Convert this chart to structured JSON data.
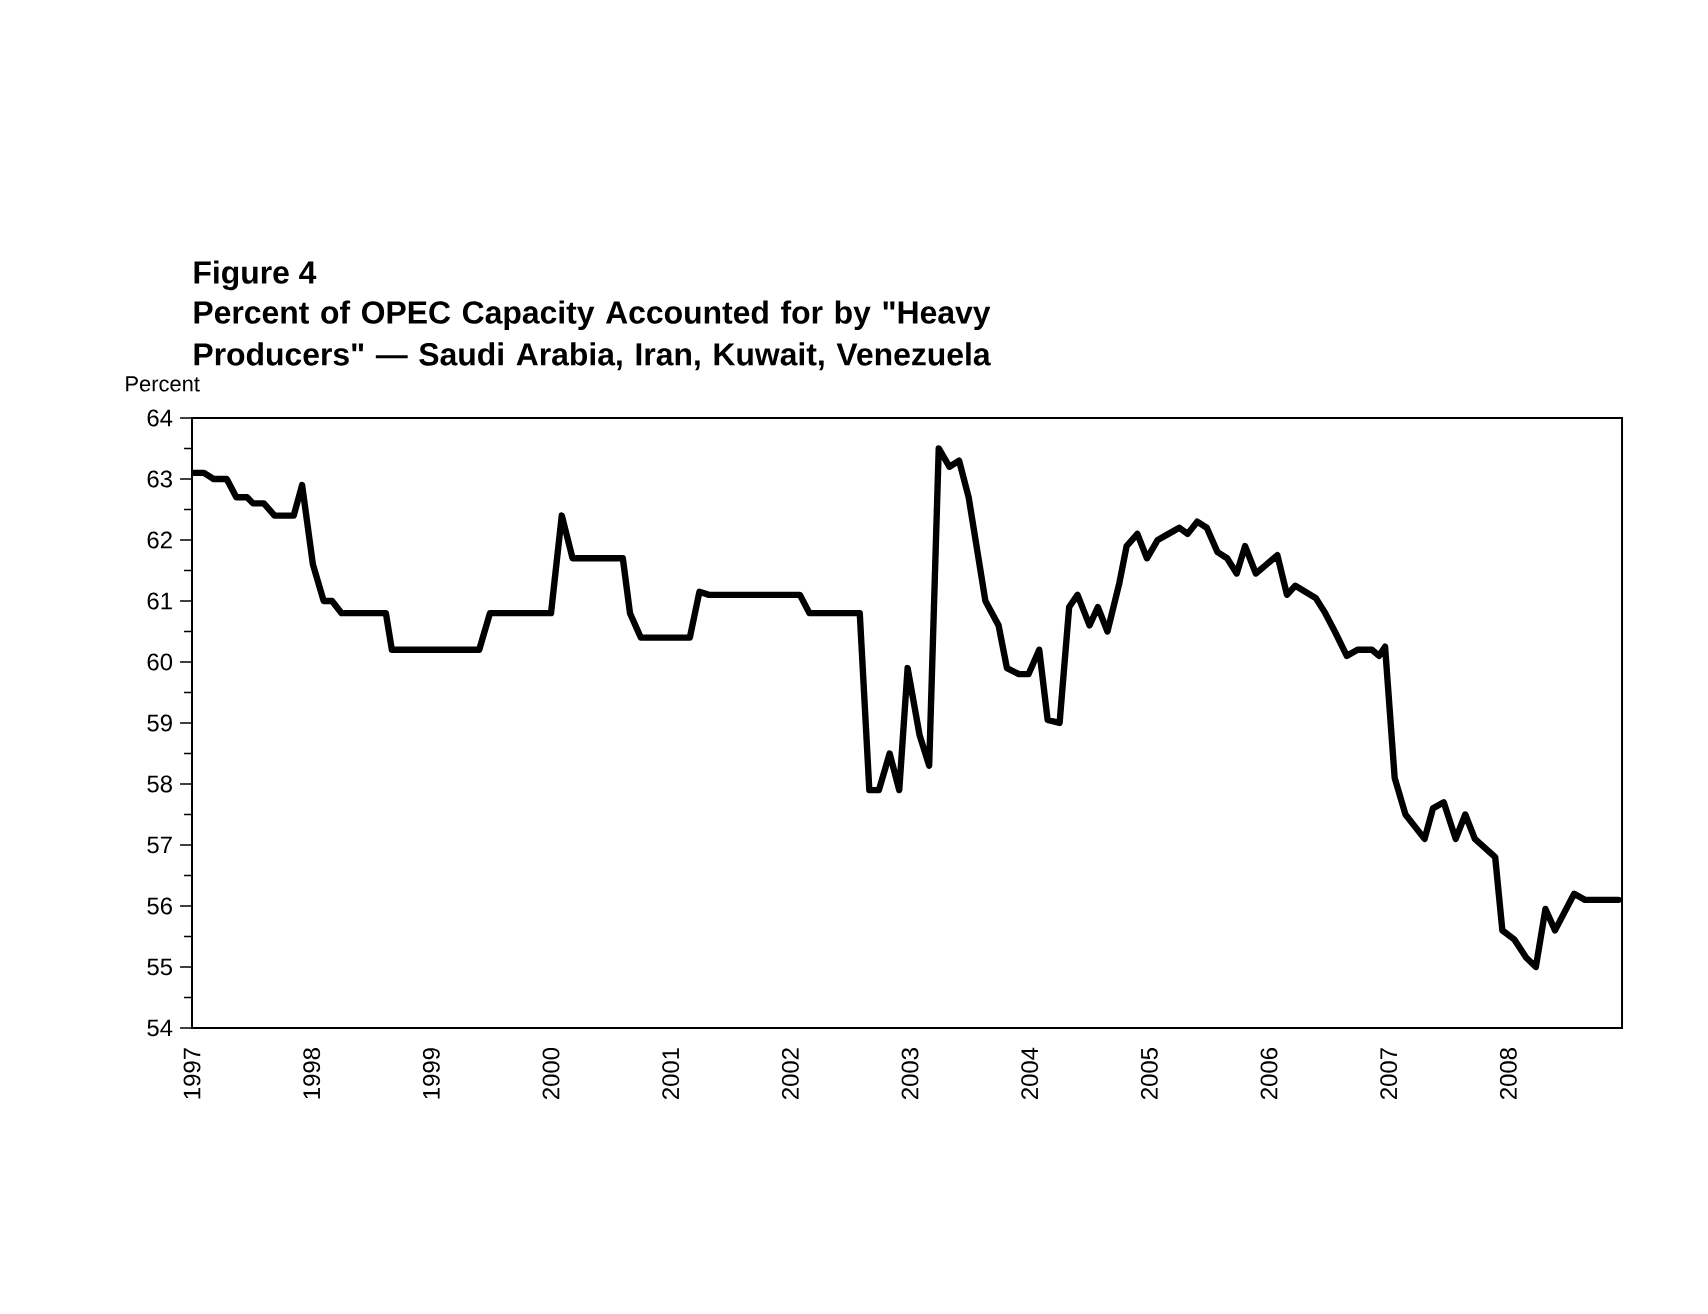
{
  "chart_data": {
    "type": "line",
    "title": "Figure 4",
    "subtitle": "Percent of OPEC Capacity Accounted for by \"Heavy Producers\" — Saudi Arabia, Iran, Kuwait, Venezuela",
    "ylabel": "Percent",
    "x": [
      1997.0,
      1997.1,
      1997.18,
      1997.29,
      1997.37,
      1997.46,
      1997.51,
      1997.6,
      1997.69,
      1997.85,
      1997.92,
      1998.01,
      1998.1,
      1998.17,
      1998.25,
      1998.62,
      1998.67,
      1999.4,
      1999.49,
      2000.0,
      2000.09,
      2000.18,
      2000.6,
      2000.66,
      2000.75,
      2001.16,
      2001.24,
      2001.32,
      2002.08,
      2002.16,
      2002.58,
      2002.66,
      2002.74,
      2002.83,
      2002.91,
      2002.98,
      2003.08,
      2003.16,
      2003.24,
      2003.33,
      2003.41,
      2003.49,
      2003.63,
      2003.74,
      2003.81,
      2003.91,
      2003.99,
      2004.08,
      2004.15,
      2004.25,
      2004.33,
      2004.4,
      2004.5,
      2004.57,
      2004.65,
      2004.75,
      2004.81,
      2004.9,
      2004.98,
      2005.07,
      2005.16,
      2005.25,
      2005.32,
      2005.4,
      2005.48,
      2005.57,
      2005.65,
      2005.73,
      2005.8,
      2005.89,
      2005.98,
      2006.07,
      2006.15,
      2006.22,
      2006.39,
      2006.47,
      2006.55,
      2006.65,
      2006.74,
      2006.86,
      2006.92,
      2006.97,
      2007.05,
      2007.14,
      2007.3,
      2007.37,
      2007.46,
      2007.56,
      2007.64,
      2007.72,
      2007.89,
      2007.95,
      2008.05,
      2008.15,
      2008.23,
      2008.31,
      2008.39,
      2008.55,
      2008.64,
      2008.92
    ],
    "series": [
      {
        "color": "#000000",
        "values": [
          63.1,
          63.1,
          63.0,
          63.0,
          62.7,
          62.7,
          62.6,
          62.6,
          62.4,
          62.4,
          62.9,
          61.6,
          61.0,
          61.0,
          60.8,
          60.8,
          60.2,
          60.2,
          60.8,
          60.8,
          62.4,
          61.7,
          61.7,
          60.8,
          60.4,
          60.4,
          61.15,
          61.1,
          61.1,
          60.8,
          60.8,
          57.9,
          57.9,
          58.5,
          57.9,
          59.9,
          58.8,
          58.3,
          63.5,
          63.2,
          63.3,
          62.7,
          61.0,
          60.6,
          59.9,
          59.8,
          59.8,
          60.2,
          59.05,
          59.0,
          60.9,
          61.1,
          60.6,
          60.9,
          60.5,
          61.3,
          61.9,
          62.1,
          61.7,
          62.0,
          62.1,
          62.2,
          62.1,
          62.3,
          62.2,
          61.8,
          61.7,
          61.45,
          61.9,
          61.45,
          61.6,
          61.75,
          61.1,
          61.25,
          61.05,
          60.8,
          60.5,
          60.1,
          60.2,
          60.2,
          60.1,
          60.25,
          58.1,
          57.5,
          57.1,
          57.6,
          57.7,
          57.1,
          57.5,
          57.1,
          56.8,
          55.6,
          55.45,
          55.15,
          55.0,
          55.95,
          55.6,
          56.2,
          56.1,
          56.1
        ]
      }
    ],
    "xlim": [
      1997,
      2008.95
    ],
    "ylim": [
      54,
      64
    ],
    "xticks": [
      1997,
      1998,
      1999,
      2000,
      2001,
      2002,
      2003,
      2004,
      2005,
      2006,
      2007,
      2008
    ],
    "yticks": [
      54,
      55,
      56,
      57,
      58,
      59,
      60,
      61,
      62,
      63,
      64
    ],
    "marker": "none",
    "line_style": "solid"
  }
}
